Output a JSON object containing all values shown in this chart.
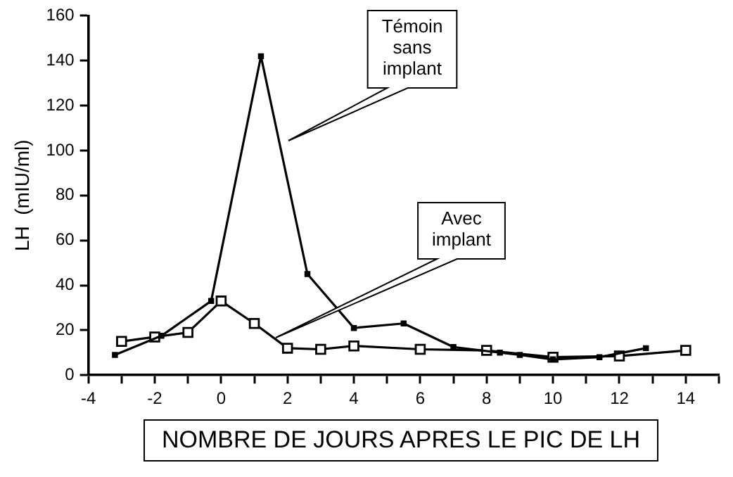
{
  "chart_data": {
    "type": "line",
    "xlabel": "NOMBRE DE JOURS APRES LE PIC DE LH",
    "ylabel": "LH  (mIU/ml)",
    "xlim": [
      -4,
      15
    ],
    "xticks": [
      -4,
      {
        "value": -3,
        "label": null
      },
      -2,
      {
        "value": -1,
        "label": null
      },
      0,
      {
        "value": 1,
        "label": null
      },
      2,
      {
        "value": 3,
        "label": null
      },
      4,
      {
        "value": 5,
        "label": null
      },
      6,
      {
        "value": 7,
        "label": null
      },
      8,
      {
        "value": 9,
        "label": null
      },
      10,
      {
        "value": 11,
        "label": null
      },
      12,
      {
        "value": 13,
        "label": null
      },
      14,
      {
        "value": 15,
        "label": null
      }
    ],
    "ylim": [
      0,
      160
    ],
    "yticks": [
      0,
      20,
      40,
      60,
      80,
      100,
      120,
      140,
      160
    ],
    "grid": false,
    "legend": false,
    "marker": "square",
    "series": [
      {
        "color": "#000000",
        "x": [
          -3.2,
          -1.8,
          -0.3,
          1.2,
          2.6,
          4,
          5.5,
          7,
          8.4,
          9,
          10,
          11.4,
          12.8
        ],
        "values": [
          9,
          17.5,
          33,
          142,
          45,
          21,
          23,
          12.5,
          10,
          9,
          7,
          8,
          12
        ]
      },
      {
        "color": "#000000",
        "x": [
          -3,
          -2,
          -1,
          0,
          1,
          2,
          3,
          4,
          6,
          8,
          10,
          12,
          14
        ],
        "values": [
          15,
          17,
          19,
          33,
          23,
          12,
          11.5,
          13,
          11.5,
          11,
          8,
          8.5,
          11
        ]
      }
    ],
    "annotations": [
      "Témoin sans implant",
      "Avec implant"
    ]
  }
}
